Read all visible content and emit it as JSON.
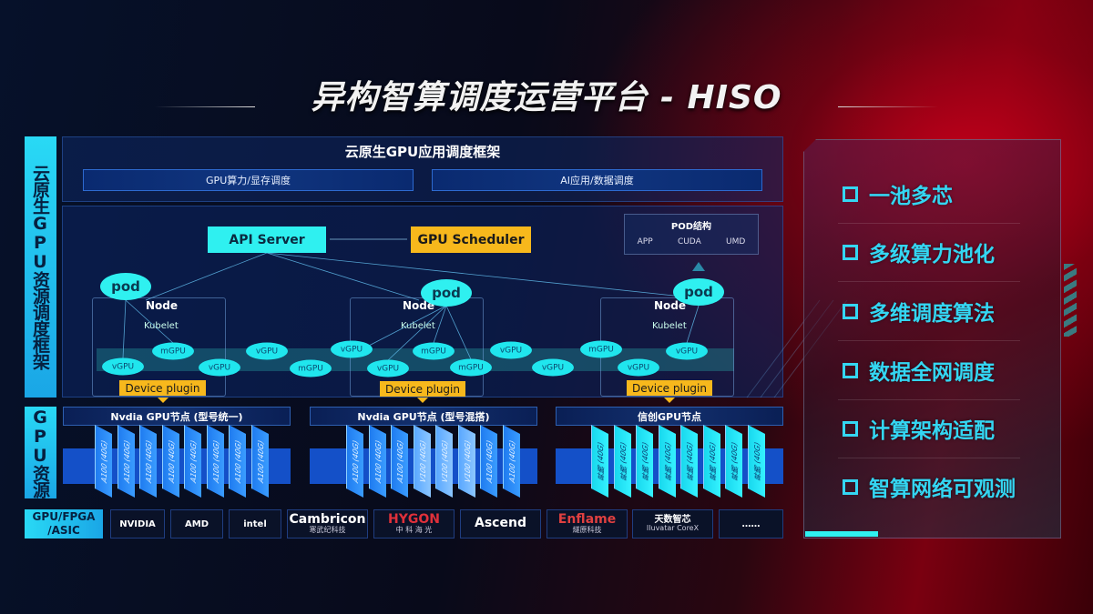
{
  "title": "异构智算调度运营平台 - HISO",
  "left_labels": {
    "framework": "云原生GPU资源调度框架",
    "resources": "GPU资源",
    "chip_types": "GPU/FPGA /ASIC"
  },
  "framework": {
    "title": "云原生GPU应用调度框架",
    "sub_left": "GPU算力/显存调度",
    "sub_right": "AI应用/数据调度"
  },
  "diagram": {
    "api_server": "API Server",
    "gpu_scheduler": "GPU Scheduler",
    "pod_structure": {
      "title": "POD结构",
      "items": [
        "APP",
        "CUDA",
        "UMD"
      ]
    },
    "pod_label": "pod",
    "node_label": "Node",
    "kubelet_label": "Kubelet",
    "device_plugin": "Device plugin",
    "virtual_gpus": [
      "vGPU",
      "mGPU",
      "vGPU",
      "vGPU",
      "mGPU",
      "vGPU",
      "vGPU",
      "mGPU",
      "mGPU",
      "vGPU",
      "vGPU",
      "mGPU",
      "vGPU",
      "vGPU"
    ]
  },
  "gpu_groups": [
    {
      "title": "Nvdia GPU节点 (型号统一)",
      "cards": [
        "A100 (40G)",
        "A100 (40G)",
        "A100 (40G)",
        "A100 (40G)",
        "A100 (40G)",
        "A100 (40G)",
        "A100 (40G)",
        "A100 (40G)"
      ]
    },
    {
      "title": "Nvdia GPU节点 (型号混搭)",
      "cards": [
        "A100 (40G)",
        "A100 (40G)",
        "A100 (40G)",
        "V100 (40G)",
        "V100 (40G)",
        "V100 (40G)",
        "A100 (40G)",
        "A100 (40G)"
      ]
    },
    {
      "title": "信创GPU节点",
      "cards": [
        "昇腾 (40G)",
        "昇腾 (40G)",
        "昇腾 (40G)",
        "昇腾 (40G)",
        "昇腾 (40G)",
        "昇腾 (40G)",
        "昇腾 (40G)",
        "昇腾 (40G)"
      ]
    }
  ],
  "vendors": [
    {
      "name": "NVIDIA",
      "sub": ""
    },
    {
      "name": "AMD",
      "sub": ""
    },
    {
      "name": "intel",
      "sub": ""
    },
    {
      "name": "Cambricon",
      "sub": "寒武纪科技"
    },
    {
      "name": "HYGON",
      "sub": "中 科 海 光"
    },
    {
      "name": "Ascend",
      "sub": ""
    },
    {
      "name": "Enflame",
      "sub": "燧原科技"
    },
    {
      "name": "天数智芯",
      "sub": "Iluvatar CoreX"
    },
    {
      "name": "……",
      "sub": ""
    }
  ],
  "features": [
    "一池多芯",
    "多级算力池化",
    "多维调度算法",
    "数据全网调度",
    "计算架构适配",
    "智算网络可观测"
  ],
  "colors": {
    "cyan": "#2ff0f0",
    "yellow": "#f7b81c",
    "blue": "#1450c8",
    "feature_text": "#34d6f2",
    "red_bg": "#c0001a"
  }
}
